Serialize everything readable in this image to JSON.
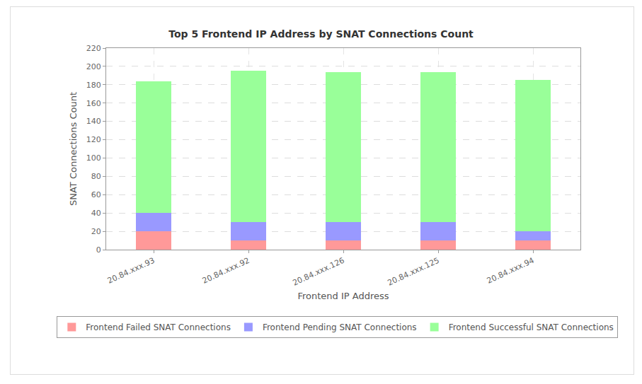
{
  "chart_data": {
    "type": "bar",
    "title": "Top 5 Frontend IP Address by SNAT Connections Count",
    "x_label": "Frontend IP Address",
    "y_label": "SNAT Connections Count",
    "categories": [
      "20.84.xxx.93",
      "20.84.xxx.92",
      "20.84.xxx.126",
      "20.84.xxx.125",
      "20.84.xxx.94"
    ],
    "series": [
      {
        "name": "Frontend Failed SNAT Connections",
        "color": "#ff9999",
        "values": [
          20,
          10,
          10,
          10,
          10
        ]
      },
      {
        "name": "Frontend Pending SNAT Connections",
        "color": "#9999ff",
        "values": [
          20,
          20,
          20,
          20,
          10
        ]
      },
      {
        "name": "Frontend Successful SNAT Connections",
        "color": "#99ff99",
        "values": [
          144,
          165,
          164,
          164,
          165
        ]
      }
    ],
    "stacked": true,
    "ylim": [
      0,
      220
    ],
    "yticks": [
      0,
      20,
      40,
      60,
      80,
      100,
      120,
      140,
      160,
      180,
      200,
      220
    ],
    "grid": true,
    "legend": "bottom"
  }
}
